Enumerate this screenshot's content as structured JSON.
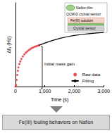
{
  "chart_data": {
    "type": "scatter",
    "x_label": "Time (s)",
    "y_label": "Δf₁ (Hz)",
    "xlim": [
      0,
      3000
    ],
    "xticks": [
      0,
      {
        "value": 1000,
        "label": "1,000"
      },
      {
        "value": 2000,
        "label": "2,000"
      },
      {
        "value": 3000,
        "label": "3,000"
      }
    ],
    "ylim": [
      0,
      1000
    ],
    "tick_labels": "x",
    "grid": false,
    "legend": "right",
    "series": [
      {
        "name": "Raw data",
        "type": "scatter",
        "color": "#e8262e",
        "marker": "circle",
        "x": [
          0,
          20,
          40,
          60,
          80,
          100,
          130,
          160,
          200,
          250,
          300,
          350,
          400,
          450,
          500,
          550,
          600,
          650,
          700,
          750,
          800
        ],
        "values": [
          0,
          20,
          80,
          140,
          190,
          230,
          270,
          300,
          330,
          360,
          385,
          405,
          420,
          435,
          447,
          458,
          467,
          475,
          482,
          488,
          493
        ]
      },
      {
        "name": "Fitting",
        "type": "line",
        "color": "#000000",
        "line_style": "solid",
        "x": [
          800,
          1000,
          1250,
          1500,
          1750,
          2000,
          2250,
          2500,
          2750,
          3000
        ],
        "values": [
          493,
          520,
          550,
          575,
          595,
          610,
          622,
          632,
          640,
          646
        ]
      }
    ],
    "annotations": [
      "Initial mass gain",
      "Nafion film",
      "QCM-D crystal sensor",
      "Fe(III) solution",
      "Crystal sensor"
    ]
  },
  "footer": {
    "text": "Fe(III) fouling behaviors on Nafion"
  }
}
